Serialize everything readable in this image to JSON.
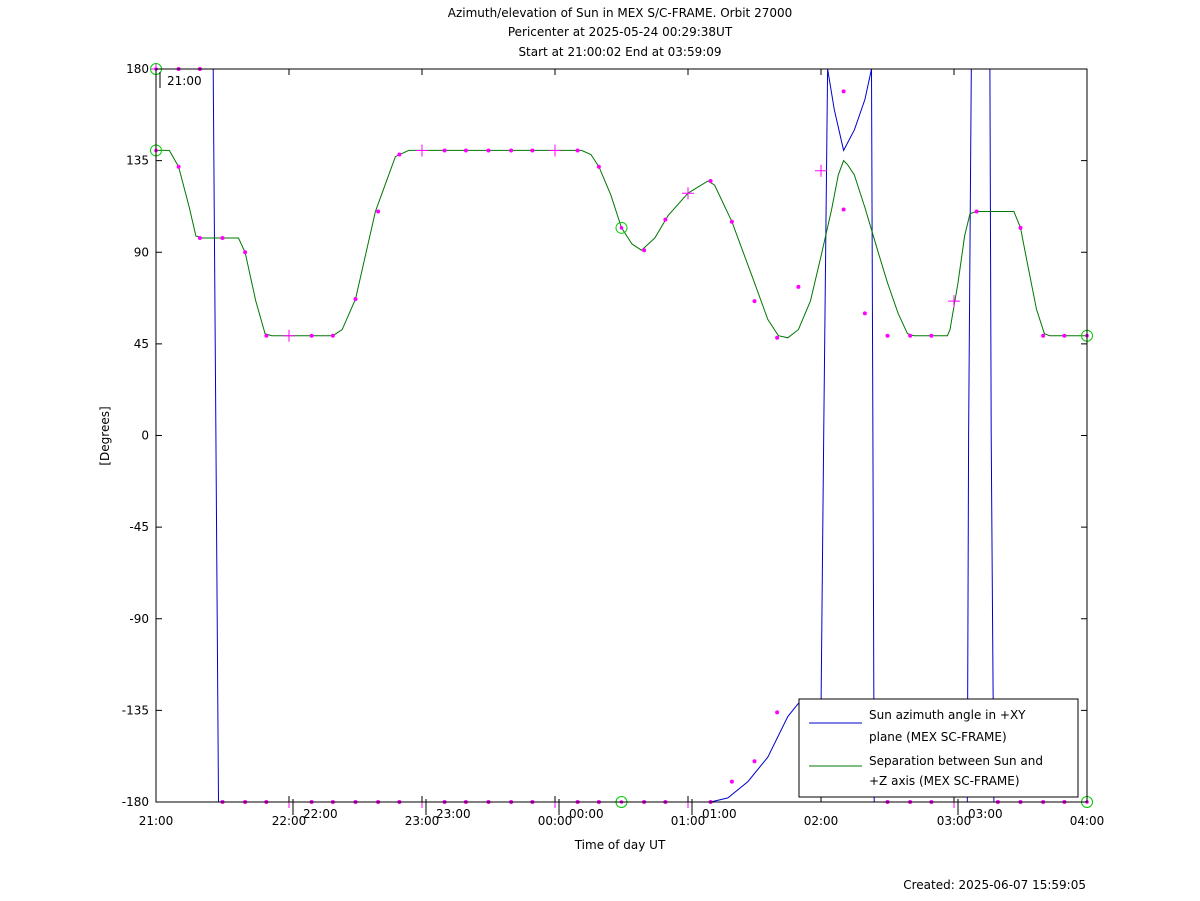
{
  "chart_data": {
    "type": "line",
    "title_lines": [
      "Azimuth/elevation of Sun in MEX S/C-FRAME.  Orbit 27000",
      "Pericenter at 2025-05-24 00:29:38UT",
      "Start at 21:00:02 End at 03:59:09"
    ],
    "xlabel": "Time of day UT",
    "ylabel": "[Degrees]",
    "footer": "Created: 2025-06-07 15:59:05",
    "x_unit": "hours since 21:00 UT",
    "xlim": [
      0,
      7
    ],
    "ylim": [
      -180,
      180
    ],
    "x_ticks": [
      {
        "x": 0,
        "label": "21:00"
      },
      {
        "x": 1,
        "label": "22:00"
      },
      {
        "x": 2,
        "label": "23:00"
      },
      {
        "x": 3,
        "label": "00:00"
      },
      {
        "x": 4,
        "label": "01:00"
      },
      {
        "x": 5,
        "label": "02:00"
      },
      {
        "x": 6,
        "label": "03:00"
      },
      {
        "x": 7,
        "label": "04:00"
      }
    ],
    "y_ticks": [
      180,
      135,
      90,
      45,
      0,
      -45,
      -90,
      -135,
      -180
    ],
    "hour_marks": [
      {
        "x": 0.0,
        "label": "21:00",
        "on_top": true
      },
      {
        "x": 1.0,
        "label": "22:00",
        "on_top": false
      },
      {
        "x": 2.0,
        "label": "23:00",
        "on_top": false
      },
      {
        "x": 3.0,
        "label": "00:00",
        "on_top": false
      },
      {
        "x": 4.0,
        "label": "01:00",
        "on_top": false
      },
      {
        "x": 6.0,
        "label": "03:00",
        "on_top": false
      }
    ],
    "legend": {
      "placement": "bottom-right",
      "entries": [
        {
          "line1": "Sun azimuth angle in +XY",
          "line2": "plane (MEX SC-FRAME)",
          "color": "#0000cc"
        },
        {
          "line1": "Separation between Sun and",
          "line2": "+Z axis (MEX SC-FRAME)",
          "color": "#007700"
        }
      ]
    },
    "colors": {
      "azimuth": "#0000cc",
      "separation": "#007700",
      "markers": "#ff00ff",
      "circles": "#00cc00"
    },
    "series": [
      {
        "name": "Sun azimuth angle in +XY plane (MEX SC-FRAME)",
        "color": "#0000cc",
        "points": [
          [
            0.0,
            180
          ],
          [
            0.43,
            180
          ],
          [
            0.45,
            0
          ],
          [
            0.47,
            -180
          ],
          [
            0.5,
            -180
          ],
          [
            3.0,
            -180
          ],
          [
            4.17,
            -180
          ],
          [
            4.3,
            -178
          ],
          [
            4.45,
            -170
          ],
          [
            4.6,
            -158
          ],
          [
            4.75,
            -138
          ],
          [
            4.85,
            -130
          ],
          [
            4.95,
            -132
          ],
          [
            5.0,
            -135
          ],
          [
            5.02,
            0
          ],
          [
            5.05,
            180
          ],
          [
            5.1,
            160
          ],
          [
            5.17,
            140
          ],
          [
            5.25,
            150
          ],
          [
            5.33,
            165
          ],
          [
            5.38,
            180
          ],
          [
            5.39,
            0
          ],
          [
            5.4,
            -180
          ],
          [
            6.1,
            -180
          ],
          [
            6.11,
            0
          ],
          [
            6.13,
            180
          ],
          [
            6.27,
            180
          ],
          [
            6.28,
            0
          ],
          [
            6.3,
            -180
          ],
          [
            7.0,
            -180
          ]
        ]
      },
      {
        "name": "Separation between Sun and +Z axis (MEX SC-FRAME)",
        "color": "#007700",
        "points": [
          [
            0.0,
            140
          ],
          [
            0.1,
            140
          ],
          [
            0.17,
            132
          ],
          [
            0.25,
            112
          ],
          [
            0.3,
            98
          ],
          [
            0.35,
            97
          ],
          [
            0.62,
            97
          ],
          [
            0.67,
            90
          ],
          [
            0.75,
            66
          ],
          [
            0.82,
            50
          ],
          [
            0.87,
            49
          ],
          [
            1.33,
            49
          ],
          [
            1.4,
            52
          ],
          [
            1.5,
            67
          ],
          [
            1.65,
            110
          ],
          [
            1.8,
            137
          ],
          [
            1.9,
            140
          ],
          [
            3.2,
            140
          ],
          [
            3.27,
            138
          ],
          [
            3.33,
            132
          ],
          [
            3.42,
            118
          ],
          [
            3.5,
            102
          ],
          [
            3.58,
            94
          ],
          [
            3.65,
            91
          ],
          [
            3.75,
            97
          ],
          [
            3.85,
            108
          ],
          [
            4.0,
            119
          ],
          [
            4.15,
            125
          ],
          [
            4.2,
            123
          ],
          [
            4.33,
            105
          ],
          [
            4.5,
            75
          ],
          [
            4.6,
            57
          ],
          [
            4.68,
            49
          ],
          [
            4.75,
            48
          ],
          [
            4.83,
            52
          ],
          [
            4.92,
            66
          ],
          [
            5.0,
            88
          ],
          [
            5.08,
            111
          ],
          [
            5.13,
            128
          ],
          [
            5.17,
            135
          ],
          [
            5.2,
            133
          ],
          [
            5.25,
            128
          ],
          [
            5.33,
            112
          ],
          [
            5.43,
            90
          ],
          [
            5.5,
            75
          ],
          [
            5.58,
            60
          ],
          [
            5.65,
            50
          ],
          [
            5.7,
            49
          ],
          [
            5.95,
            49
          ],
          [
            5.97,
            52
          ],
          [
            6.03,
            75
          ],
          [
            6.08,
            98
          ],
          [
            6.12,
            109
          ],
          [
            6.17,
            110
          ],
          [
            6.45,
            110
          ],
          [
            6.5,
            102
          ],
          [
            6.55,
            85
          ],
          [
            6.62,
            62
          ],
          [
            6.68,
            50
          ],
          [
            6.72,
            49
          ],
          [
            7.0,
            49
          ]
        ]
      }
    ],
    "dot_markers": [
      [
        0.17,
        180
      ],
      [
        0.33,
        180
      ],
      [
        0.17,
        132
      ],
      [
        0.33,
        97
      ],
      [
        0.5,
        97
      ],
      [
        0.67,
        90
      ],
      [
        0.83,
        49
      ],
      [
        1.17,
        49
      ],
      [
        1.33,
        49
      ],
      [
        1.5,
        67
      ],
      [
        1.67,
        110
      ],
      [
        1.83,
        138
      ],
      [
        2.17,
        140
      ],
      [
        2.33,
        140
      ],
      [
        2.5,
        140
      ],
      [
        2.67,
        140
      ],
      [
        2.83,
        140
      ],
      [
        3.17,
        140
      ],
      [
        3.33,
        132
      ],
      [
        3.67,
        91
      ],
      [
        3.83,
        106
      ],
      [
        4.17,
        125
      ],
      [
        4.33,
        105
      ],
      [
        4.5,
        66
      ],
      [
        4.67,
        48
      ],
      [
        4.83,
        73
      ],
      [
        5.17,
        111
      ],
      [
        5.33,
        60
      ],
      [
        5.5,
        49
      ],
      [
        5.67,
        49
      ],
      [
        5.83,
        49
      ],
      [
        6.17,
        110
      ],
      [
        6.5,
        102
      ],
      [
        6.67,
        49
      ],
      [
        6.83,
        49
      ],
      [
        0.5,
        -180
      ],
      [
        0.67,
        -180
      ],
      [
        0.83,
        -180
      ],
      [
        1.17,
        -180
      ],
      [
        1.33,
        -180
      ],
      [
        1.5,
        -180
      ],
      [
        1.67,
        -180
      ],
      [
        1.83,
        -180
      ],
      [
        2.17,
        -180
      ],
      [
        2.33,
        -180
      ],
      [
        2.5,
        -180
      ],
      [
        2.67,
        -180
      ],
      [
        2.83,
        -180
      ],
      [
        3.17,
        -180
      ],
      [
        3.33,
        -180
      ],
      [
        3.67,
        -180
      ],
      [
        3.83,
        -180
      ],
      [
        4.17,
        -180
      ],
      [
        4.33,
        -170
      ],
      [
        4.5,
        -160
      ],
      [
        4.67,
        -136
      ],
      [
        5.5,
        -180
      ],
      [
        5.67,
        -180
      ],
      [
        5.83,
        -180
      ],
      [
        6.33,
        -180
      ],
      [
        6.5,
        -180
      ],
      [
        6.67,
        -180
      ],
      [
        6.83,
        -180
      ],
      [
        5.17,
        169
      ]
    ],
    "plus_markers": [
      [
        0.0,
        180
      ],
      [
        1.0,
        49
      ],
      [
        2.0,
        140
      ],
      [
        3.0,
        140
      ],
      [
        4.0,
        119
      ],
      [
        5.0,
        130
      ],
      [
        6.0,
        66
      ],
      [
        1.0,
        -180
      ],
      [
        2.0,
        -180
      ],
      [
        3.0,
        -180
      ],
      [
        4.0,
        -180
      ],
      [
        6.0,
        -180
      ]
    ],
    "circle_markers": [
      [
        0.0,
        180
      ],
      [
        0.0,
        140
      ],
      [
        3.5,
        102
      ],
      [
        3.5,
        -180
      ],
      [
        7.0,
        49
      ],
      [
        7.0,
        -180
      ]
    ]
  }
}
